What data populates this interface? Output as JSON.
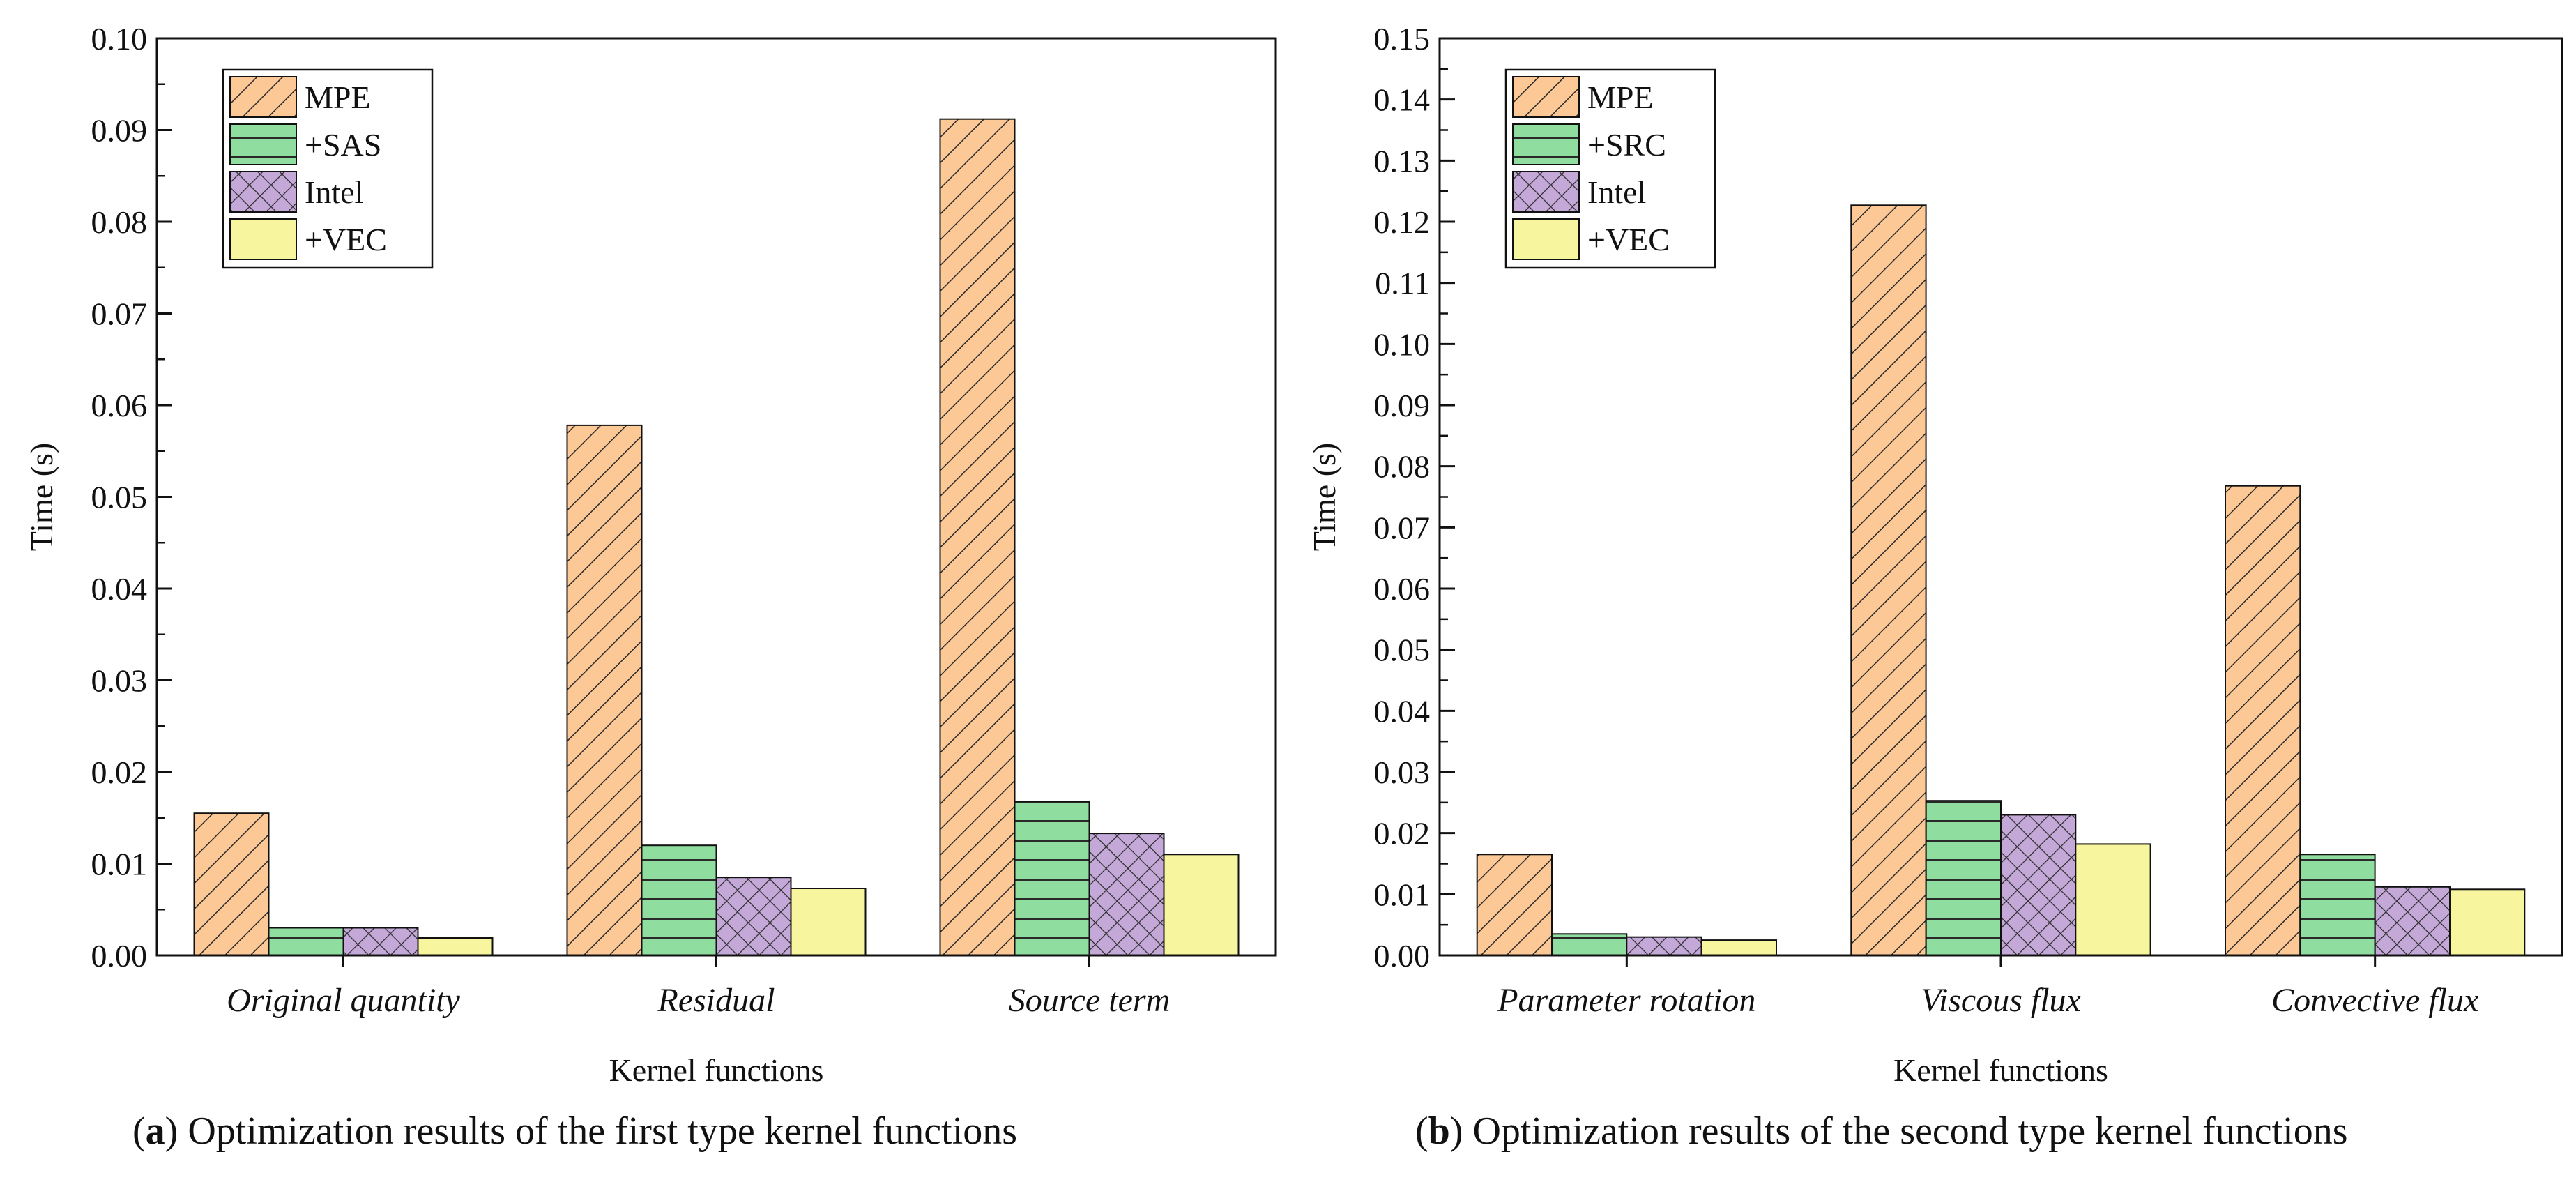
{
  "chart_data": [
    {
      "type": "bar",
      "panel": "a",
      "caption": "Optimization results of the first type kernel functions",
      "xlabel": "Kernel functions",
      "ylabel": "Time (s)",
      "ylim": [
        0,
        0.1
      ],
      "yticks": [
        "0.00",
        "0.01",
        "0.02",
        "0.03",
        "0.04",
        "0.05",
        "0.06",
        "0.07",
        "0.08",
        "0.09",
        "0.10"
      ],
      "categories": [
        "Original quantity",
        "Residual",
        "Source term"
      ],
      "legend_position": "top-left",
      "series": [
        {
          "name": "MPE",
          "style": "mpe",
          "values": [
            0.0155,
            0.0578,
            0.0912
          ]
        },
        {
          "name": "+SAS",
          "style": "opt",
          "values": [
            0.003,
            0.012,
            0.0168
          ]
        },
        {
          "name": "Intel",
          "style": "intel",
          "values": [
            0.003,
            0.0085,
            0.0133
          ]
        },
        {
          "name": "+VEC",
          "style": "vec",
          "values": [
            0.0019,
            0.0073,
            0.011
          ]
        }
      ]
    },
    {
      "type": "bar",
      "panel": "b",
      "caption": "Optimization results of the second type kernel functions",
      "xlabel": "Kernel functions",
      "ylabel": "Time (s)",
      "ylim": [
        0,
        0.15
      ],
      "yticks": [
        "0.00",
        "0.01",
        "0.02",
        "0.03",
        "0.04",
        "0.05",
        "0.06",
        "0.07",
        "0.08",
        "0.09",
        "0.10",
        "0.11",
        "0.12",
        "0.13",
        "0.14",
        "0.15"
      ],
      "categories": [
        "Parameter rotation",
        "Viscous flux",
        "Convective flux"
      ],
      "legend_position": "top-left",
      "series": [
        {
          "name": "MPE",
          "style": "mpe",
          "values": [
            0.0165,
            0.1227,
            0.0768
          ]
        },
        {
          "name": "+SRC",
          "style": "opt",
          "values": [
            0.0035,
            0.0253,
            0.0165
          ]
        },
        {
          "name": "Intel",
          "style": "intel",
          "values": [
            0.003,
            0.023,
            0.0112
          ]
        },
        {
          "name": "+VEC",
          "style": "vec",
          "values": [
            0.0025,
            0.0182,
            0.0108
          ]
        }
      ]
    }
  ],
  "colors": {
    "mpe": "#fcc896",
    "opt": "#8fdea0",
    "intel": "#c4a9d8",
    "vec": "#f7f59d",
    "hatch": "#2a2a2a",
    "axis": "#111111"
  }
}
